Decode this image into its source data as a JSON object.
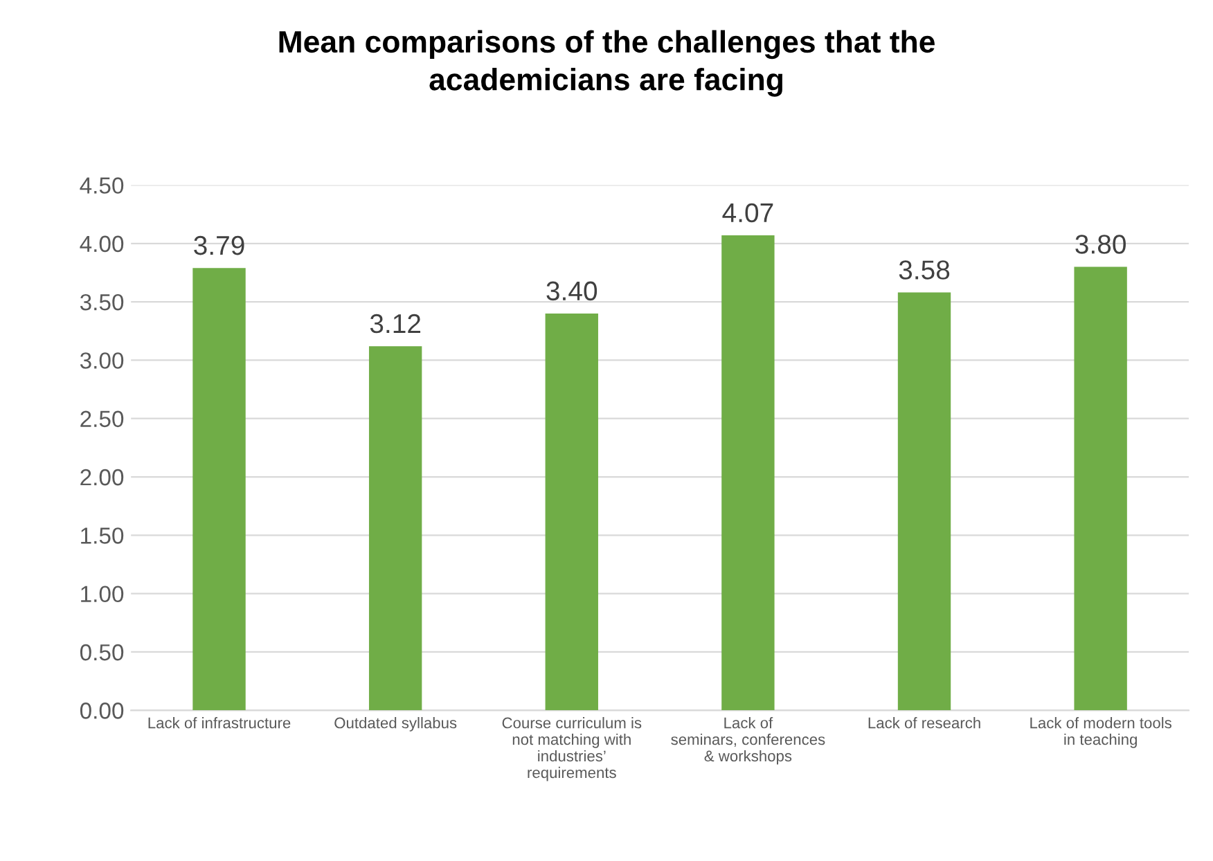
{
  "chart_data": {
    "type": "bar",
    "title": "Mean comparisons of the challenges that the\nacademicians are facing",
    "categories": [
      "Lack of infrastructure",
      "Outdated syllabus",
      "Course curriculum is\nnot matching with\nindustries’\nrequirements",
      "Lack of\nseminars, conferences\n& workshops",
      "Lack of research",
      "Lack of modern tools\nin teaching"
    ],
    "values": [
      3.79,
      3.12,
      3.4,
      4.07,
      3.58,
      3.8
    ],
    "value_labels": [
      "3.79",
      "3.12",
      "3.40",
      "4.07",
      "3.58",
      "3.80"
    ],
    "color": "#70ad47",
    "ylim": [
      0,
      4.5
    ],
    "yticks": [
      {
        "value": 0,
        "label": "0.00"
      },
      {
        "value": 0.5,
        "label": "0.50"
      },
      {
        "value": 1,
        "label": "1.00"
      },
      {
        "value": 1.5,
        "label": "1.50"
      },
      {
        "value": 2,
        "label": "2.00"
      },
      {
        "value": 2.5,
        "label": "2.50"
      },
      {
        "value": 3,
        "label": "3.00"
      },
      {
        "value": 3.5,
        "label": "3.50"
      },
      {
        "value": 4,
        "label": "4.00"
      },
      {
        "value": 4.5,
        "label": "4.50"
      }
    ],
    "grid": "y",
    "legend": false
  }
}
